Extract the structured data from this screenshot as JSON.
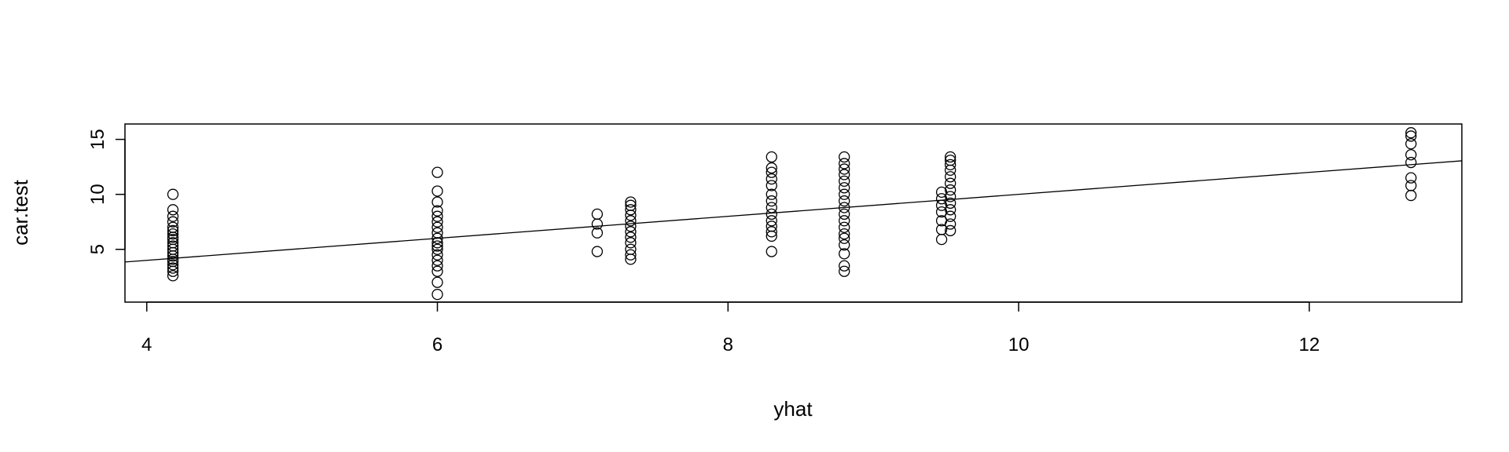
{
  "chart_data": {
    "type": "scatter",
    "title": "",
    "xlabel": "yhat",
    "ylabel": "car.test",
    "xlim": [
      3.85,
      13.05
    ],
    "ylim": [
      0.2,
      16.4
    ],
    "xticks": [
      4,
      6,
      8,
      10,
      12
    ],
    "yticks": [
      5,
      10,
      15
    ],
    "grid": false,
    "reference_line": {
      "intercept": 0,
      "slope": 1
    },
    "point_style": "open-circle",
    "series": [
      {
        "points": [
          [
            4.18,
            2.6
          ],
          [
            4.18,
            3.0
          ],
          [
            4.18,
            3.3
          ],
          [
            4.18,
            3.6
          ],
          [
            4.18,
            3.9
          ],
          [
            4.18,
            4.1
          ],
          [
            4.18,
            4.4
          ],
          [
            4.18,
            4.7
          ],
          [
            4.18,
            5.0
          ],
          [
            4.18,
            5.3
          ],
          [
            4.18,
            5.6
          ],
          [
            4.18,
            5.9
          ],
          [
            4.18,
            6.1
          ],
          [
            4.18,
            6.4
          ],
          [
            4.18,
            6.7
          ],
          [
            4.18,
            7.0
          ],
          [
            4.18,
            7.5
          ],
          [
            4.18,
            8.0
          ],
          [
            4.18,
            8.6
          ],
          [
            4.18,
            10.0
          ],
          [
            6.0,
            0.9
          ],
          [
            6.0,
            2.0
          ],
          [
            6.0,
            3.0
          ],
          [
            6.0,
            3.5
          ],
          [
            6.0,
            4.0
          ],
          [
            6.0,
            4.5
          ],
          [
            6.0,
            5.0
          ],
          [
            6.0,
            5.3
          ],
          [
            6.0,
            5.6
          ],
          [
            6.0,
            6.0
          ],
          [
            6.0,
            6.5
          ],
          [
            6.0,
            7.0
          ],
          [
            6.0,
            7.5
          ],
          [
            6.0,
            8.0
          ],
          [
            6.0,
            8.5
          ],
          [
            6.0,
            9.3
          ],
          [
            6.0,
            10.3
          ],
          [
            6.0,
            12.0
          ],
          [
            7.1,
            4.8
          ],
          [
            7.1,
            6.5
          ],
          [
            7.1,
            7.3
          ],
          [
            7.1,
            8.2
          ],
          [
            7.33,
            4.1
          ],
          [
            7.33,
            4.5
          ],
          [
            7.33,
            5.0
          ],
          [
            7.33,
            5.6
          ],
          [
            7.33,
            6.1
          ],
          [
            7.33,
            6.6
          ],
          [
            7.33,
            7.1
          ],
          [
            7.33,
            7.6
          ],
          [
            7.33,
            8.1
          ],
          [
            7.33,
            8.6
          ],
          [
            7.33,
            9.0
          ],
          [
            7.33,
            9.3
          ],
          [
            8.3,
            4.8
          ],
          [
            8.3,
            6.2
          ],
          [
            8.3,
            6.6
          ],
          [
            8.3,
            7.1
          ],
          [
            8.3,
            7.6
          ],
          [
            8.3,
            8.2
          ],
          [
            8.3,
            8.8
          ],
          [
            8.3,
            9.4
          ],
          [
            8.3,
            10.0
          ],
          [
            8.3,
            10.8
          ],
          [
            8.3,
            11.4
          ],
          [
            8.3,
            12.0
          ],
          [
            8.3,
            12.4
          ],
          [
            8.3,
            13.4
          ],
          [
            8.8,
            3.0
          ],
          [
            8.8,
            3.5
          ],
          [
            8.8,
            4.6
          ],
          [
            8.8,
            5.4
          ],
          [
            8.8,
            6.0
          ],
          [
            8.8,
            6.4
          ],
          [
            8.8,
            7.0
          ],
          [
            8.8,
            7.6
          ],
          [
            8.8,
            8.2
          ],
          [
            8.8,
            8.8
          ],
          [
            8.8,
            9.4
          ],
          [
            8.8,
            10.0
          ],
          [
            8.8,
            10.6
          ],
          [
            8.8,
            11.2
          ],
          [
            8.8,
            11.8
          ],
          [
            8.8,
            12.3
          ],
          [
            8.8,
            12.8
          ],
          [
            8.8,
            13.4
          ],
          [
            9.47,
            5.9
          ],
          [
            9.47,
            6.8
          ],
          [
            9.47,
            7.6
          ],
          [
            9.47,
            8.4
          ],
          [
            9.47,
            9.0
          ],
          [
            9.47,
            9.6
          ],
          [
            9.47,
            10.2
          ],
          [
            9.53,
            6.7
          ],
          [
            9.53,
            7.3
          ],
          [
            9.53,
            8.0
          ],
          [
            9.53,
            8.6
          ],
          [
            9.53,
            9.2
          ],
          [
            9.53,
            9.8
          ],
          [
            9.53,
            10.4
          ],
          [
            9.53,
            11.0
          ],
          [
            9.53,
            11.6
          ],
          [
            9.53,
            12.2
          ],
          [
            9.53,
            12.7
          ],
          [
            9.53,
            13.1
          ],
          [
            9.53,
            13.4
          ],
          [
            12.7,
            9.9
          ],
          [
            12.7,
            10.8
          ],
          [
            12.7,
            11.5
          ],
          [
            12.7,
            12.9
          ],
          [
            12.7,
            13.6
          ],
          [
            12.7,
            14.6
          ],
          [
            12.7,
            15.3
          ],
          [
            12.7,
            15.6
          ]
        ]
      }
    ]
  }
}
